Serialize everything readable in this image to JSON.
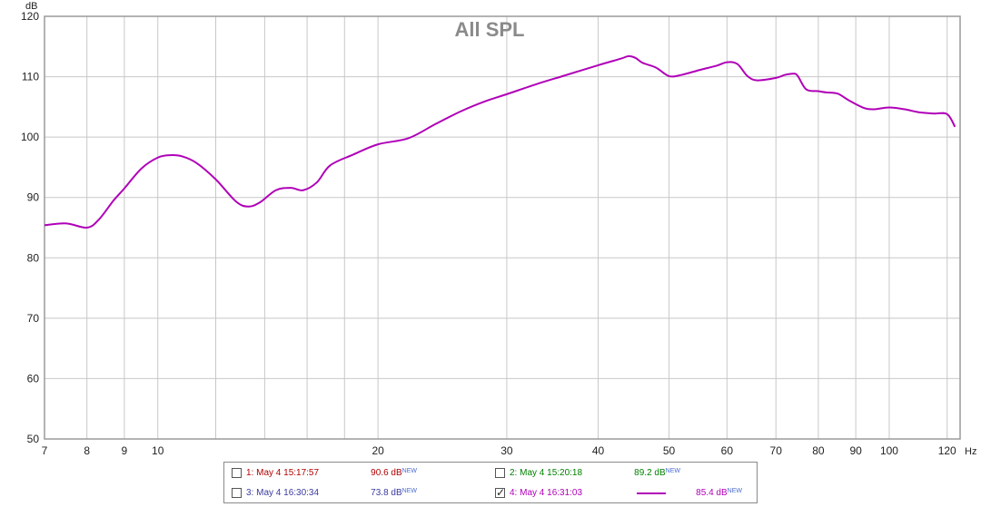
{
  "chart_data": {
    "type": "line",
    "title": "All SPL",
    "xlabel": "",
    "ylabel": "",
    "x_unit": "Hz",
    "y_unit": "dB",
    "x_scale": "log",
    "xlim": [
      7,
      125
    ],
    "ylim": [
      50,
      120
    ],
    "x_major_ticks": [
      7,
      8,
      9,
      10,
      20,
      30,
      40,
      50,
      60,
      70,
      80,
      90,
      100,
      120
    ],
    "x_minor_ticks": [
      12,
      14,
      16,
      18
    ],
    "y_ticks": [
      50,
      60,
      70,
      80,
      90,
      100,
      110,
      120
    ],
    "x_tick_labels": [
      "7",
      "8",
      "9",
      "10",
      "20",
      "30",
      "40",
      "50",
      "60",
      "70",
      "80",
      "90",
      "100",
      "120"
    ],
    "y_tick_labels": [
      "50",
      "60",
      "70",
      "80",
      "90",
      "100",
      "110",
      "120"
    ],
    "grid": true,
    "series": [
      {
        "name": "4: May 4 16:31:03",
        "color": "#b000b8",
        "x": [
          7,
          7.5,
          8,
          8.3,
          8.7,
          9,
          9.5,
          10,
          10.4,
          10.8,
          11.3,
          12,
          12.8,
          13.3,
          13.8,
          14.5,
          15.2,
          15.8,
          16.5,
          17.2,
          18.5,
          20,
          22,
          24,
          26,
          28,
          30,
          33,
          36,
          40,
          43,
          44,
          45,
          46,
          48,
          50,
          52,
          55,
          58,
          60,
          62,
          64,
          66,
          70,
          72,
          74,
          75,
          77,
          80,
          82,
          85,
          88,
          92,
          95,
          100,
          105,
          110,
          115,
          120,
          123
        ],
        "y": [
          85.4,
          85.7,
          85,
          86.3,
          89.5,
          91.5,
          94.8,
          96.6,
          97,
          96.8,
          95.7,
          93,
          89.3,
          88.5,
          89.2,
          91.2,
          91.6,
          91.2,
          92.5,
          95.3,
          97.1,
          98.8,
          99.8,
          102.2,
          104.3,
          105.9,
          107.1,
          108.8,
          110.2,
          111.9,
          113,
          113.4,
          113.1,
          112.3,
          111.5,
          110.1,
          110.3,
          111.1,
          111.8,
          112.4,
          112.1,
          110.1,
          109.4,
          109.8,
          110.3,
          110.5,
          110.1,
          107.9,
          107.6,
          107.4,
          107.2,
          106.1,
          104.9,
          104.6,
          104.9,
          104.6,
          104.1,
          103.9,
          103.8,
          101.7
        ]
      }
    ]
  },
  "legend": {
    "entries": [
      {
        "label": "1: May 4 15:17:57",
        "value": "90.6 dB",
        "badge": "NEW",
        "color": "#b00000",
        "checked": false,
        "line": false
      },
      {
        "label": "2: May 4 15:20:18",
        "value": "89.2 dB",
        "badge": "NEW",
        "color": "#008000",
        "checked": false,
        "line": false
      },
      {
        "label": "3: May 4 16:30:34",
        "value": "73.8 dB",
        "badge": "NEW",
        "color": "#3a3aa0",
        "checked": false,
        "line": false
      },
      {
        "label": "4: May 4 16:31:03",
        "value": "85.4 dB",
        "badge": "NEW",
        "color": "#b000b8",
        "checked": true,
        "line": true
      }
    ]
  },
  "style": {
    "grid_color": "#c8c8c8",
    "frame_color": "#9a9a9a",
    "badge_color": "#4a6ad0"
  }
}
